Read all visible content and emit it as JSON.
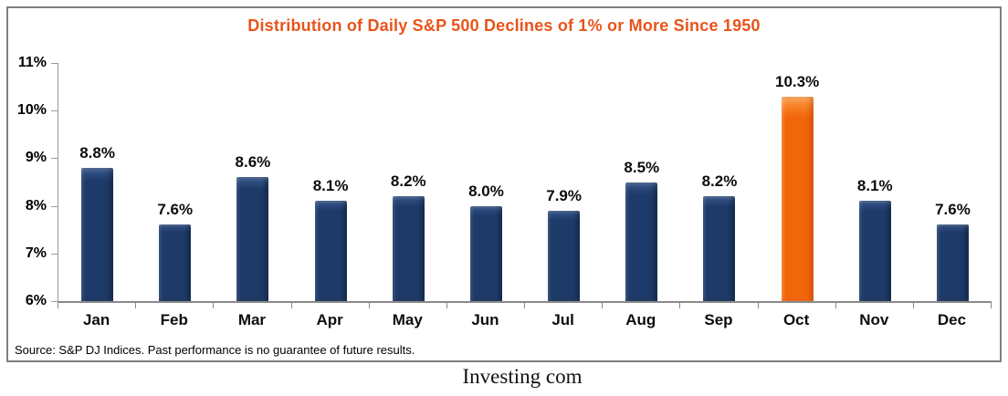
{
  "colors": {
    "title": "#E8541A",
    "bar_navy": "#1E3A68",
    "bar_highlight_orange": "#F2660A",
    "axis_gray": "#9A9A9A",
    "frame_border_gray": "#7F7F7F",
    "label_black": "#0D0D0D"
  },
  "chart_data": {
    "type": "bar",
    "title": "Distribution of Daily S&P 500 Declines of 1% or More Since 1950",
    "categories": [
      "Jan",
      "Feb",
      "Mar",
      "Apr",
      "May",
      "Jun",
      "Jul",
      "Aug",
      "Sep",
      "Oct",
      "Nov",
      "Dec"
    ],
    "values": [
      8.8,
      7.6,
      8.6,
      8.1,
      8.2,
      8.0,
      7.9,
      8.5,
      8.2,
      10.3,
      8.1,
      7.6
    ],
    "value_labels": [
      "8.8%",
      "7.6%",
      "8.6%",
      "8.1%",
      "8.2%",
      "8.0%",
      "7.9%",
      "8.5%",
      "8.2%",
      "10.3%",
      "8.1%",
      "7.6%"
    ],
    "highlight_index": 9,
    "xlabel": "",
    "ylabel": "",
    "ylim": [
      6,
      11
    ],
    "yticks": [
      6,
      7,
      8,
      9,
      10,
      11
    ],
    "ytick_labels": [
      "6%",
      "7%",
      "8%",
      "9%",
      "10%",
      "11%"
    ],
    "grid": false,
    "legend": false,
    "footnote": "Source: S&P DJ Indices. Past performance is no guarantee of future results."
  },
  "footer": {
    "watermark": "Investing com"
  }
}
